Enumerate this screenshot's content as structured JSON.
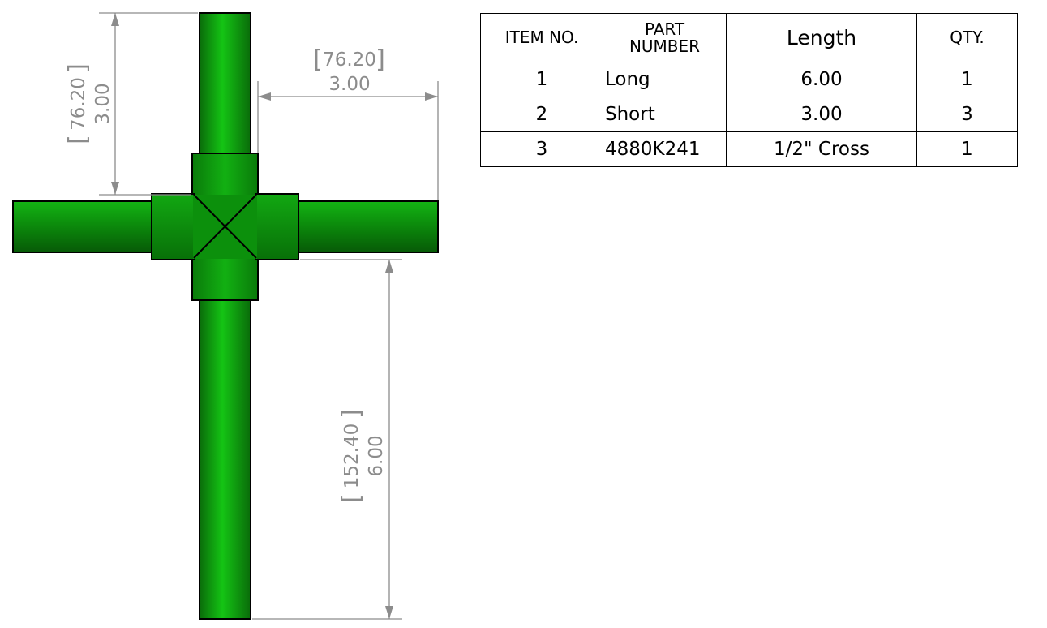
{
  "colors": {
    "pipe_dark": "#0a6c0a",
    "pipe_light": "#12c412",
    "fitting": "#0c930c",
    "dimension": "#8c8c8c",
    "outline": "#000000"
  },
  "dimensions": {
    "top_length": {
      "value": "3.00",
      "metric": "76.20",
      "bracket_open": "[",
      "bracket_close": "]"
    },
    "right_length": {
      "value": "3.00",
      "metric": "76.20",
      "bracket_open": "[",
      "bracket_close": "]"
    },
    "bottom_length": {
      "value": "6.00",
      "metric": "152.40",
      "bracket_open": "[",
      "bracket_close": "]"
    }
  },
  "bom": {
    "headers": {
      "item_no": "ITEM NO.",
      "part_number_line1": "PART",
      "part_number_line2": "NUMBER",
      "length": "Length",
      "qty": "QTY."
    },
    "rows": [
      {
        "item": "1",
        "part": "Long",
        "length": "6.00",
        "qty": "1"
      },
      {
        "item": "2",
        "part": "Short",
        "length": "3.00",
        "qty": "3"
      },
      {
        "item": "3",
        "part": "4880K241",
        "length": "1/2\" Cross",
        "qty": "1"
      }
    ]
  }
}
